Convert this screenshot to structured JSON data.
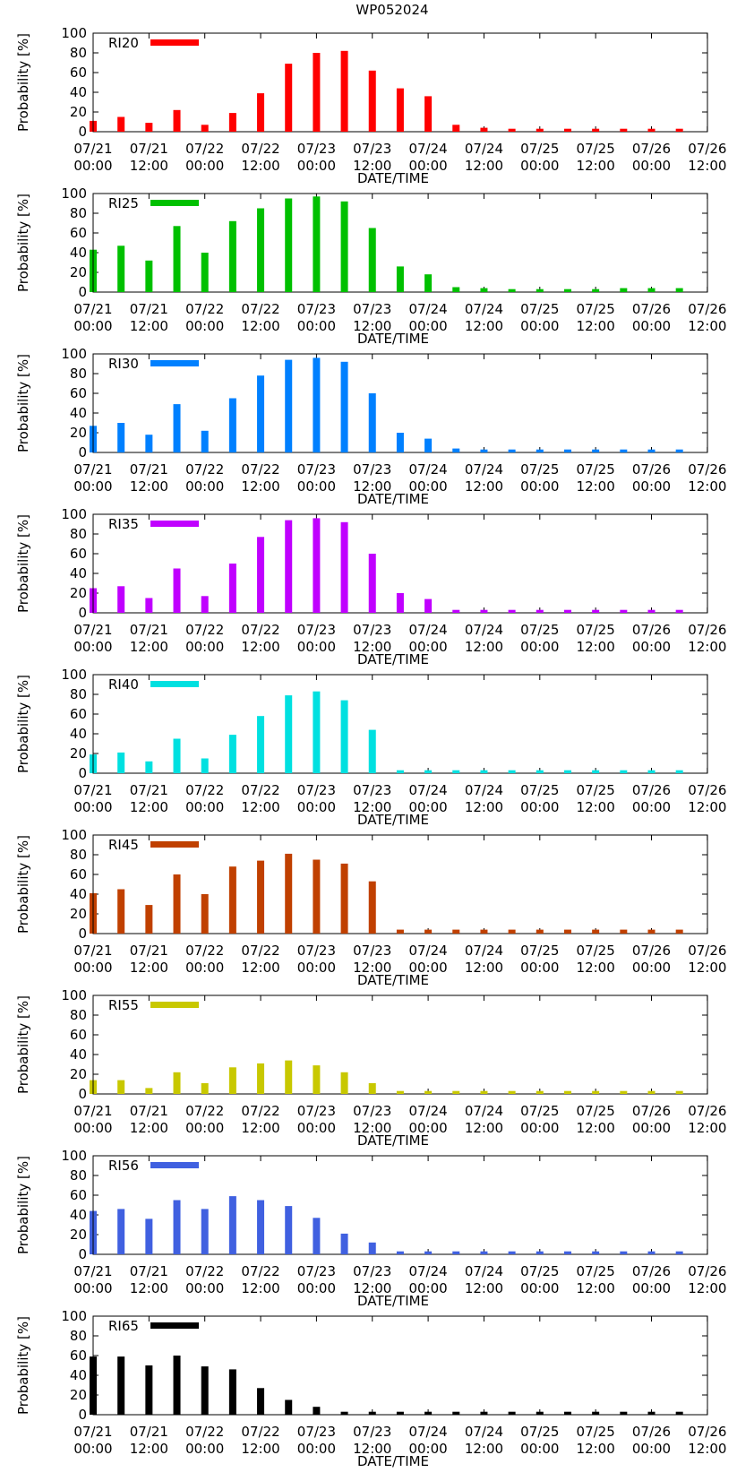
{
  "title": "WP052024",
  "chart_data": [
    {
      "type": "bar",
      "legend": "RI20",
      "color": "#ff0000",
      "title": "WP052024",
      "xlabel": "DATE/TIME",
      "ylabel": "Probability [%]",
      "ylim": [
        0,
        100
      ],
      "yticks": [
        0,
        20,
        40,
        60,
        80,
        100
      ],
      "x_tick_labels": [
        [
          "07/21",
          "00:00"
        ],
        [
          "07/21",
          "12:00"
        ],
        [
          "07/22",
          "00:00"
        ],
        [
          "07/22",
          "12:00"
        ],
        [
          "07/23",
          "00:00"
        ],
        [
          "07/23",
          "12:00"
        ],
        [
          "07/24",
          "00:00"
        ],
        [
          "07/24",
          "12:00"
        ],
        [
          "07/25",
          "00:00"
        ],
        [
          "07/25",
          "12:00"
        ],
        [
          "07/26",
          "00:00"
        ],
        [
          "07/26",
          "12:00"
        ]
      ],
      "values": [
        11,
        15,
        9,
        22,
        7,
        19,
        39,
        69,
        80,
        82,
        62,
        44,
        36,
        7,
        4,
        3,
        3,
        3,
        3,
        3,
        3,
        3
      ]
    },
    {
      "type": "bar",
      "legend": "RI25",
      "color": "#00c000",
      "title": "",
      "xlabel": "DATE/TIME",
      "ylabel": "Probability [%]",
      "ylim": [
        0,
        100
      ],
      "yticks": [
        0,
        20,
        40,
        60,
        80,
        100
      ],
      "x_tick_labels": [
        [
          "07/21",
          "00:00"
        ],
        [
          "07/21",
          "12:00"
        ],
        [
          "07/22",
          "00:00"
        ],
        [
          "07/22",
          "12:00"
        ],
        [
          "07/23",
          "00:00"
        ],
        [
          "07/23",
          "12:00"
        ],
        [
          "07/24",
          "00:00"
        ],
        [
          "07/24",
          "12:00"
        ],
        [
          "07/25",
          "00:00"
        ],
        [
          "07/25",
          "12:00"
        ],
        [
          "07/26",
          "00:00"
        ],
        [
          "07/26",
          "12:00"
        ]
      ],
      "values": [
        43,
        47,
        32,
        67,
        40,
        72,
        85,
        95,
        97,
        92,
        65,
        26,
        18,
        5,
        4,
        3,
        3,
        3,
        3,
        4,
        4,
        4
      ]
    },
    {
      "type": "bar",
      "legend": "RI30",
      "color": "#0080ff",
      "title": "",
      "xlabel": "DATE/TIME",
      "ylabel": "Probability [%]",
      "ylim": [
        0,
        100
      ],
      "yticks": [
        0,
        20,
        40,
        60,
        80,
        100
      ],
      "x_tick_labels": [
        [
          "07/21",
          "00:00"
        ],
        [
          "07/21",
          "12:00"
        ],
        [
          "07/22",
          "00:00"
        ],
        [
          "07/22",
          "12:00"
        ],
        [
          "07/23",
          "00:00"
        ],
        [
          "07/23",
          "12:00"
        ],
        [
          "07/24",
          "00:00"
        ],
        [
          "07/24",
          "12:00"
        ],
        [
          "07/25",
          "00:00"
        ],
        [
          "07/25",
          "12:00"
        ],
        [
          "07/26",
          "00:00"
        ],
        [
          "07/26",
          "12:00"
        ]
      ],
      "values": [
        27,
        30,
        18,
        49,
        22,
        55,
        78,
        94,
        96,
        92,
        60,
        20,
        14,
        4,
        3,
        3,
        3,
        3,
        3,
        3,
        3,
        3
      ]
    },
    {
      "type": "bar",
      "legend": "RI35",
      "color": "#c000ff",
      "title": "",
      "xlabel": "DATE/TIME",
      "ylabel": "Probability [%]",
      "ylim": [
        0,
        100
      ],
      "yticks": [
        0,
        20,
        40,
        60,
        80,
        100
      ],
      "x_tick_labels": [
        [
          "07/21",
          "00:00"
        ],
        [
          "07/21",
          "12:00"
        ],
        [
          "07/22",
          "00:00"
        ],
        [
          "07/22",
          "12:00"
        ],
        [
          "07/23",
          "00:00"
        ],
        [
          "07/23",
          "12:00"
        ],
        [
          "07/24",
          "00:00"
        ],
        [
          "07/24",
          "12:00"
        ],
        [
          "07/25",
          "00:00"
        ],
        [
          "07/25",
          "12:00"
        ],
        [
          "07/26",
          "00:00"
        ],
        [
          "07/26",
          "12:00"
        ]
      ],
      "values": [
        25,
        27,
        15,
        45,
        17,
        50,
        77,
        94,
        96,
        92,
        60,
        20,
        14,
        3,
        3,
        3,
        3,
        3,
        3,
        3,
        3,
        3
      ]
    },
    {
      "type": "bar",
      "legend": "RI40",
      "color": "#00e0e0",
      "title": "",
      "xlabel": "DATE/TIME",
      "ylabel": "Probability [%]",
      "ylim": [
        0,
        100
      ],
      "yticks": [
        0,
        20,
        40,
        60,
        80,
        100
      ],
      "x_tick_labels": [
        [
          "07/21",
          "00:00"
        ],
        [
          "07/21",
          "12:00"
        ],
        [
          "07/22",
          "00:00"
        ],
        [
          "07/22",
          "12:00"
        ],
        [
          "07/23",
          "00:00"
        ],
        [
          "07/23",
          "12:00"
        ],
        [
          "07/24",
          "00:00"
        ],
        [
          "07/24",
          "12:00"
        ],
        [
          "07/25",
          "00:00"
        ],
        [
          "07/25",
          "12:00"
        ],
        [
          "07/26",
          "00:00"
        ],
        [
          "07/26",
          "12:00"
        ]
      ],
      "values": [
        19,
        21,
        12,
        35,
        15,
        39,
        58,
        79,
        83,
        74,
        44,
        3,
        3,
        3,
        3,
        3,
        3,
        3,
        3,
        3,
        3,
        3
      ]
    },
    {
      "type": "bar",
      "legend": "RI45",
      "color": "#c04000",
      "title": "",
      "xlabel": "DATE/TIME",
      "ylabel": "Probability [%]",
      "ylim": [
        0,
        100
      ],
      "yticks": [
        0,
        20,
        40,
        60,
        80,
        100
      ],
      "x_tick_labels": [
        [
          "07/21",
          "00:00"
        ],
        [
          "07/21",
          "12:00"
        ],
        [
          "07/22",
          "00:00"
        ],
        [
          "07/22",
          "12:00"
        ],
        [
          "07/23",
          "00:00"
        ],
        [
          "07/23",
          "12:00"
        ],
        [
          "07/24",
          "00:00"
        ],
        [
          "07/24",
          "12:00"
        ],
        [
          "07/25",
          "00:00"
        ],
        [
          "07/25",
          "12:00"
        ],
        [
          "07/26",
          "00:00"
        ],
        [
          "07/26",
          "12:00"
        ]
      ],
      "values": [
        41,
        45,
        29,
        60,
        40,
        68,
        74,
        81,
        75,
        71,
        53,
        4,
        4,
        4,
        4,
        4,
        4,
        4,
        4,
        4,
        4,
        4
      ]
    },
    {
      "type": "bar",
      "legend": "RI55",
      "color": "#c8c800",
      "title": "",
      "xlabel": "DATE/TIME",
      "ylabel": "Probability [%]",
      "ylim": [
        0,
        100
      ],
      "yticks": [
        0,
        20,
        40,
        60,
        80,
        100
      ],
      "x_tick_labels": [
        [
          "07/21",
          "00:00"
        ],
        [
          "07/21",
          "12:00"
        ],
        [
          "07/22",
          "00:00"
        ],
        [
          "07/22",
          "12:00"
        ],
        [
          "07/23",
          "00:00"
        ],
        [
          "07/23",
          "12:00"
        ],
        [
          "07/24",
          "00:00"
        ],
        [
          "07/24",
          "12:00"
        ],
        [
          "07/25",
          "00:00"
        ],
        [
          "07/25",
          "12:00"
        ],
        [
          "07/26",
          "00:00"
        ],
        [
          "07/26",
          "12:00"
        ]
      ],
      "values": [
        14,
        14,
        6,
        22,
        11,
        27,
        31,
        34,
        29,
        22,
        11,
        3,
        3,
        3,
        3,
        3,
        3,
        3,
        3,
        3,
        3,
        3
      ]
    },
    {
      "type": "bar",
      "legend": "RI56",
      "color": "#4060e0",
      "title": "",
      "xlabel": "DATE/TIME",
      "ylabel": "Probability [%]",
      "ylim": [
        0,
        100
      ],
      "yticks": [
        0,
        20,
        40,
        60,
        80,
        100
      ],
      "x_tick_labels": [
        [
          "07/21",
          "00:00"
        ],
        [
          "07/21",
          "12:00"
        ],
        [
          "07/22",
          "00:00"
        ],
        [
          "07/22",
          "12:00"
        ],
        [
          "07/23",
          "00:00"
        ],
        [
          "07/23",
          "12:00"
        ],
        [
          "07/24",
          "00:00"
        ],
        [
          "07/24",
          "12:00"
        ],
        [
          "07/25",
          "00:00"
        ],
        [
          "07/25",
          "12:00"
        ],
        [
          "07/26",
          "00:00"
        ],
        [
          "07/26",
          "12:00"
        ]
      ],
      "values": [
        44,
        46,
        36,
        55,
        46,
        59,
        55,
        49,
        37,
        21,
        12,
        3,
        3,
        3,
        3,
        3,
        3,
        3,
        3,
        3,
        3,
        3
      ]
    },
    {
      "type": "bar",
      "legend": "RI65",
      "color": "#000000",
      "title": "",
      "xlabel": "DATE/TIME",
      "ylabel": "Probability [%]",
      "ylim": [
        0,
        100
      ],
      "yticks": [
        0,
        20,
        40,
        60,
        80,
        100
      ],
      "x_tick_labels": [
        [
          "07/21",
          "00:00"
        ],
        [
          "07/21",
          "12:00"
        ],
        [
          "07/22",
          "00:00"
        ],
        [
          "07/22",
          "12:00"
        ],
        [
          "07/23",
          "00:00"
        ],
        [
          "07/23",
          "12:00"
        ],
        [
          "07/24",
          "00:00"
        ],
        [
          "07/24",
          "12:00"
        ],
        [
          "07/25",
          "00:00"
        ],
        [
          "07/25",
          "12:00"
        ],
        [
          "07/26",
          "00:00"
        ],
        [
          "07/26",
          "12:00"
        ]
      ],
      "values": [
        59,
        59,
        50,
        60,
        49,
        46,
        27,
        15,
        8,
        3,
        3,
        3,
        3,
        3,
        3,
        3,
        3,
        3,
        3,
        3,
        3,
        3
      ]
    }
  ]
}
